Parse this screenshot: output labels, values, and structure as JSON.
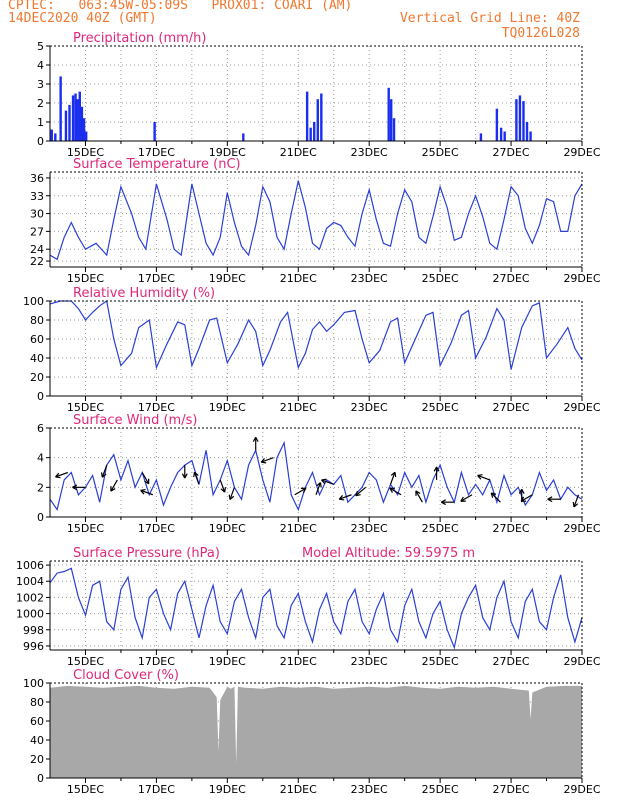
{
  "header": {
    "line1_left": "CPTEC:   063:45W-05:09S   PROX01: COARI (AM)",
    "line2_left": "14DEC2020 40Z (GMT)",
    "line2_right": "Vertical Grid Line: 40Z",
    "line3_right": "TQ0126L028"
  },
  "colors": {
    "header": "#f07830",
    "panel_title": "#e0287a",
    "series_line": "#2a3fd6",
    "precip_bar": "#1a2ef0",
    "cloud_fill": "#a8a8a8",
    "wind_arrow": "#000000"
  },
  "time_axis": {
    "tick_labels": [
      "15DEC",
      "17DEC",
      "19DEC",
      "21DEC",
      "23DEC",
      "25DEC",
      "27DEC",
      "29DEC"
    ],
    "range_days": [
      14,
      29
    ]
  },
  "chart_data": [
    {
      "type": "bar",
      "title": "Precipitation (mm/h)",
      "ylim": [
        0,
        5
      ],
      "yticks": [
        "0",
        "1",
        "2",
        "3",
        "4",
        "5"
      ],
      "grid": true,
      "x": [
        14.05,
        14.15,
        14.3,
        14.45,
        14.55,
        14.65,
        14.72,
        14.78,
        14.84,
        14.9,
        14.96,
        15.02,
        16.95,
        19.45,
        21.25,
        21.35,
        21.45,
        21.55,
        21.65,
        23.55,
        23.62,
        23.7,
        26.15,
        26.6,
        26.72,
        26.82,
        27.15,
        27.25,
        27.35,
        27.45,
        27.55
      ],
      "values": [
        0.6,
        0.4,
        3.4,
        1.6,
        1.9,
        2.4,
        2.5,
        2.2,
        2.6,
        1.8,
        1.2,
        0.5,
        1.0,
        0.4,
        2.6,
        0.7,
        1.0,
        2.2,
        2.5,
        2.8,
        2.2,
        1.2,
        0.4,
        1.7,
        0.7,
        0.5,
        2.2,
        2.4,
        2.1,
        1.0,
        0.5
      ]
    },
    {
      "type": "line",
      "title": "Surface Temperature (nC)",
      "ylim": [
        21,
        37
      ],
      "yticks": [
        "22",
        "24",
        "27",
        "30",
        "33",
        "36"
      ],
      "ytick_values": [
        22,
        24,
        27,
        30,
        33,
        36
      ],
      "grid": true,
      "x": [
        14.0,
        14.2,
        14.4,
        14.6,
        14.8,
        15.0,
        15.3,
        15.6,
        15.8,
        16.0,
        16.3,
        16.5,
        16.7,
        17.0,
        17.3,
        17.5,
        17.7,
        18.0,
        18.2,
        18.4,
        18.6,
        18.8,
        19.0,
        19.2,
        19.4,
        19.6,
        19.8,
        20.0,
        20.2,
        20.4,
        20.6,
        20.8,
        21.0,
        21.2,
        21.4,
        21.6,
        21.8,
        22.0,
        22.2,
        22.4,
        22.6,
        22.8,
        23.0,
        23.2,
        23.4,
        23.6,
        23.8,
        24.0,
        24.2,
        24.4,
        24.6,
        24.8,
        25.0,
        25.2,
        25.4,
        25.6,
        25.8,
        26.0,
        26.2,
        26.4,
        26.6,
        26.8,
        27.0,
        27.2,
        27.4,
        27.6,
        27.8,
        28.0,
        28.2,
        28.4,
        28.6,
        28.8,
        29.0
      ],
      "values": [
        23.0,
        22.3,
        26.0,
        28.5,
        26.0,
        24.0,
        25.0,
        23.0,
        29.0,
        34.5,
        30.0,
        26.0,
        24.0,
        35.0,
        29.0,
        24.0,
        23.0,
        35.0,
        30.0,
        25.0,
        23.0,
        26.0,
        33.5,
        28.5,
        24.5,
        23.0,
        28.0,
        34.5,
        32.0,
        26.0,
        24.0,
        30.0,
        35.5,
        31.0,
        25.0,
        24.0,
        27.5,
        28.5,
        28.0,
        26.0,
        24.5,
        30.0,
        34.0,
        29.0,
        25.0,
        24.5,
        30.0,
        34.0,
        32.0,
        26.0,
        25.0,
        29.5,
        34.5,
        31.0,
        25.5,
        26.0,
        30.0,
        33.0,
        29.5,
        25.0,
        24.0,
        29.0,
        34.5,
        33.0,
        27.5,
        25.0,
        28.0,
        32.5,
        32.0,
        27.0,
        27.0,
        33.0,
        35.0
      ]
    },
    {
      "type": "line",
      "title": "Relative Humidity (%)",
      "ylim": [
        0,
        100
      ],
      "yticks": [
        "0",
        "20",
        "40",
        "60",
        "80",
        "100"
      ],
      "grid": true,
      "x": [
        14.0,
        14.3,
        14.6,
        14.8,
        15.0,
        15.2,
        15.4,
        15.6,
        15.8,
        16.0,
        16.3,
        16.5,
        16.8,
        17.0,
        17.3,
        17.6,
        17.8,
        18.0,
        18.2,
        18.5,
        18.7,
        19.0,
        19.3,
        19.6,
        19.8,
        20.0,
        20.2,
        20.5,
        20.7,
        21.0,
        21.2,
        21.4,
        21.6,
        21.8,
        22.0,
        22.3,
        22.6,
        22.8,
        23.0,
        23.3,
        23.6,
        23.8,
        24.0,
        24.3,
        24.6,
        24.8,
        25.0,
        25.3,
        25.6,
        25.8,
        26.0,
        26.3,
        26.6,
        26.8,
        27.0,
        27.3,
        27.6,
        27.8,
        28.0,
        28.3,
        28.6,
        28.8,
        29.0
      ],
      "values": [
        97,
        100,
        100,
        92,
        80,
        88,
        95,
        100,
        60,
        32,
        45,
        72,
        80,
        30,
        55,
        78,
        75,
        32,
        50,
        80,
        82,
        35,
        55,
        80,
        68,
        32,
        48,
        78,
        88,
        30,
        45,
        70,
        78,
        68,
        75,
        88,
        90,
        60,
        35,
        48,
        78,
        82,
        35,
        60,
        85,
        88,
        32,
        55,
        85,
        90,
        40,
        62,
        92,
        80,
        28,
        72,
        95,
        98,
        40,
        55,
        72,
        50,
        38
      ]
    },
    {
      "type": "line",
      "title": "Surface Wind (m/s)",
      "ylim": [
        0,
        6
      ],
      "yticks": [
        "0",
        "2",
        "4",
        "6"
      ],
      "grid": true,
      "x": [
        14.0,
        14.2,
        14.4,
        14.6,
        14.8,
        15.0,
        15.2,
        15.4,
        15.6,
        15.8,
        16.0,
        16.2,
        16.4,
        16.6,
        16.8,
        17.0,
        17.2,
        17.4,
        17.6,
        17.8,
        18.0,
        18.2,
        18.4,
        18.6,
        18.8,
        19.0,
        19.2,
        19.4,
        19.6,
        19.8,
        20.0,
        20.2,
        20.4,
        20.6,
        20.8,
        21.0,
        21.2,
        21.4,
        21.6,
        21.8,
        22.0,
        22.2,
        22.4,
        22.6,
        22.8,
        23.0,
        23.2,
        23.4,
        23.6,
        23.8,
        24.0,
        24.2,
        24.4,
        24.6,
        24.8,
        25.0,
        25.2,
        25.4,
        25.6,
        25.8,
        26.0,
        26.2,
        26.4,
        26.6,
        26.8,
        27.0,
        27.2,
        27.4,
        27.6,
        27.8,
        28.0,
        28.2,
        28.4,
        28.6,
        28.8,
        29.0
      ],
      "values": [
        1.2,
        0.5,
        2.5,
        3.0,
        1.5,
        2.0,
        2.8,
        1.0,
        3.5,
        4.2,
        2.5,
        3.8,
        2.0,
        3.0,
        1.5,
        2.5,
        0.8,
        2.0,
        3.0,
        3.5,
        3.8,
        2.2,
        4.5,
        1.5,
        2.5,
        3.8,
        2.0,
        1.2,
        3.5,
        4.5,
        2.5,
        1.0,
        4.0,
        5.0,
        1.5,
        0.5,
        2.0,
        3.0,
        1.5,
        2.5,
        2.2,
        2.8,
        1.0,
        1.5,
        2.0,
        3.0,
        2.5,
        1.0,
        2.2,
        1.5,
        3.0,
        2.0,
        2.8,
        1.0,
        2.5,
        3.5,
        2.0,
        1.0,
        3.0,
        1.5,
        2.2,
        1.5,
        2.5,
        1.0,
        2.8,
        1.5,
        2.0,
        0.8,
        1.5,
        3.0,
        1.8,
        2.5,
        1.2,
        2.0,
        1.5,
        1.2
      ],
      "arrows": {
        "x": [
          14.5,
          15.0,
          15.6,
          15.9,
          16.6,
          16.9,
          17.8,
          18.2,
          18.8,
          19.2,
          19.8,
          20.3,
          20.9,
          21.5,
          22.0,
          22.5,
          22.9,
          23.6,
          23.9,
          24.5,
          24.9,
          25.4,
          25.9,
          26.4,
          26.7,
          27.3,
          27.6,
          28.4,
          28.9
        ],
        "direction_deg": [
          200,
          180,
          250,
          240,
          300,
          160,
          270,
          110,
          290,
          250,
          90,
          200,
          30,
          70,
          160,
          200,
          220,
          70,
          150,
          120,
          90,
          180,
          210,
          160,
          135,
          90,
          210,
          180,
          250
        ]
      }
    },
    {
      "type": "line",
      "title": "Surface Pressure (hPa)",
      "annotation": "Model Altitude: 59.5975 m",
      "ylim": [
        995.5,
        1006.5
      ],
      "yticks": [
        "996",
        "998",
        "1000",
        "1002",
        "1004",
        "1006"
      ],
      "ytick_values": [
        996,
        998,
        1000,
        1002,
        1004,
        1006
      ],
      "grid": true,
      "x": [
        14.0,
        14.2,
        14.4,
        14.6,
        14.8,
        15.0,
        15.2,
        15.4,
        15.6,
        15.8,
        16.0,
        16.2,
        16.4,
        16.6,
        16.8,
        17.0,
        17.2,
        17.4,
        17.6,
        17.8,
        18.0,
        18.2,
        18.4,
        18.6,
        18.8,
        19.0,
        19.2,
        19.4,
        19.6,
        19.8,
        20.0,
        20.2,
        20.4,
        20.6,
        20.8,
        21.0,
        21.2,
        21.4,
        21.6,
        21.8,
        22.0,
        22.2,
        22.4,
        22.6,
        22.8,
        23.0,
        23.2,
        23.4,
        23.6,
        23.8,
        24.0,
        24.2,
        24.4,
        24.6,
        24.8,
        25.0,
        25.2,
        25.4,
        25.6,
        25.8,
        26.0,
        26.2,
        26.4,
        26.6,
        26.8,
        27.0,
        27.2,
        27.4,
        27.6,
        27.8,
        28.0,
        28.2,
        28.4,
        28.6,
        28.8,
        29.0
      ],
      "values": [
        1003.8,
        1005.0,
        1005.2,
        1005.6,
        1002.0,
        999.8,
        1003.5,
        1004.0,
        999.0,
        998.0,
        1003.0,
        1004.5,
        999.5,
        997.0,
        1002.0,
        1003.0,
        1000.0,
        998.0,
        1002.5,
        1004.0,
        1000.5,
        997.0,
        1001.0,
        1003.5,
        999.0,
        997.5,
        1001.5,
        1003.0,
        999.5,
        997.0,
        1002.0,
        1003.0,
        998.5,
        997.0,
        1001.0,
        1002.5,
        999.0,
        996.5,
        1000.5,
        1002.5,
        999.0,
        997.5,
        1001.5,
        1003.0,
        999.0,
        997.5,
        1000.5,
        1002.5,
        998.0,
        996.5,
        1001.0,
        1003.0,
        999.0,
        997.0,
        1000.0,
        1001.5,
        998.0,
        995.8,
        1000.0,
        1002.0,
        1003.5,
        999.5,
        998.0,
        1002.0,
        1004.0,
        999.0,
        997.0,
        1001.5,
        1003.0,
        999.0,
        998.0,
        1002.0,
        1004.8,
        999.5,
        996.5,
        999.5
      ]
    },
    {
      "type": "area",
      "title": "Cloud Cover (%)",
      "ylim": [
        0,
        100
      ],
      "yticks": [
        "0",
        "20",
        "40",
        "60",
        "80",
        "100"
      ],
      "grid": true,
      "x": [
        14.0,
        14.5,
        15.0,
        15.5,
        16.0,
        16.5,
        17.0,
        17.5,
        18.0,
        18.5,
        18.7,
        18.75,
        18.8,
        19.0,
        19.1,
        19.2,
        19.25,
        19.3,
        19.5,
        20.0,
        20.5,
        21.0,
        21.5,
        22.0,
        22.5,
        23.0,
        23.5,
        24.0,
        24.5,
        25.0,
        25.5,
        26.0,
        26.5,
        27.0,
        27.5,
        27.55,
        27.6,
        28.0,
        28.5,
        29.0
      ],
      "values": [
        95,
        97,
        96,
        95,
        96,
        97,
        95,
        94,
        96,
        95,
        85,
        28,
        82,
        96,
        94,
        96,
        15,
        96,
        95,
        94,
        96,
        95,
        96,
        94,
        95,
        96,
        95,
        97,
        95,
        94,
        96,
        95,
        96,
        94,
        92,
        62,
        90,
        96,
        97,
        97
      ]
    }
  ]
}
